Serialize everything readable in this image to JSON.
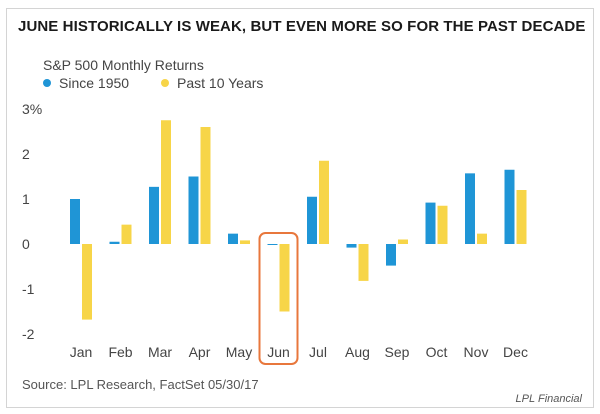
{
  "colors": {
    "since_1950": "#1f95d6",
    "past_10_years": "#f7d548",
    "highlight": "#e8773c"
  },
  "chart_data": {
    "type": "bar",
    "title": "JUNE HISTORICALLY IS WEAK, BUT EVEN MORE SO FOR THE PAST DECADE",
    "subtitle": "S&P 500 Monthly Returns",
    "categories": [
      "Jan",
      "Feb",
      "Mar",
      "Apr",
      "May",
      "Jun",
      "Jul",
      "Aug",
      "Sep",
      "Oct",
      "Nov",
      "Dec"
    ],
    "series": [
      {
        "name": "Since 1950",
        "values": [
          1.0,
          0.05,
          1.27,
          1.5,
          0.23,
          -0.02,
          1.05,
          -0.08,
          -0.48,
          0.92,
          1.57,
          1.65
        ]
      },
      {
        "name": "Past 10 Years",
        "values": [
          -1.68,
          0.43,
          2.75,
          2.6,
          0.08,
          -1.5,
          1.85,
          -0.82,
          0.1,
          0.85,
          0.23,
          1.2
        ]
      }
    ],
    "y_ticks": [
      "3%",
      "2",
      "1",
      "0",
      "-1",
      "-2"
    ],
    "y_tick_values": [
      3,
      2,
      1,
      0,
      -1,
      -2
    ],
    "ylim": [
      -2,
      3
    ],
    "xlabel": "",
    "ylabel": "",
    "grid": false,
    "highlight_category": "Jun",
    "legend_placement": "top-left",
    "source": "Source: LPL Research, FactSet   05/30/17"
  },
  "branding": {
    "logo_text": "LPL Financial"
  }
}
